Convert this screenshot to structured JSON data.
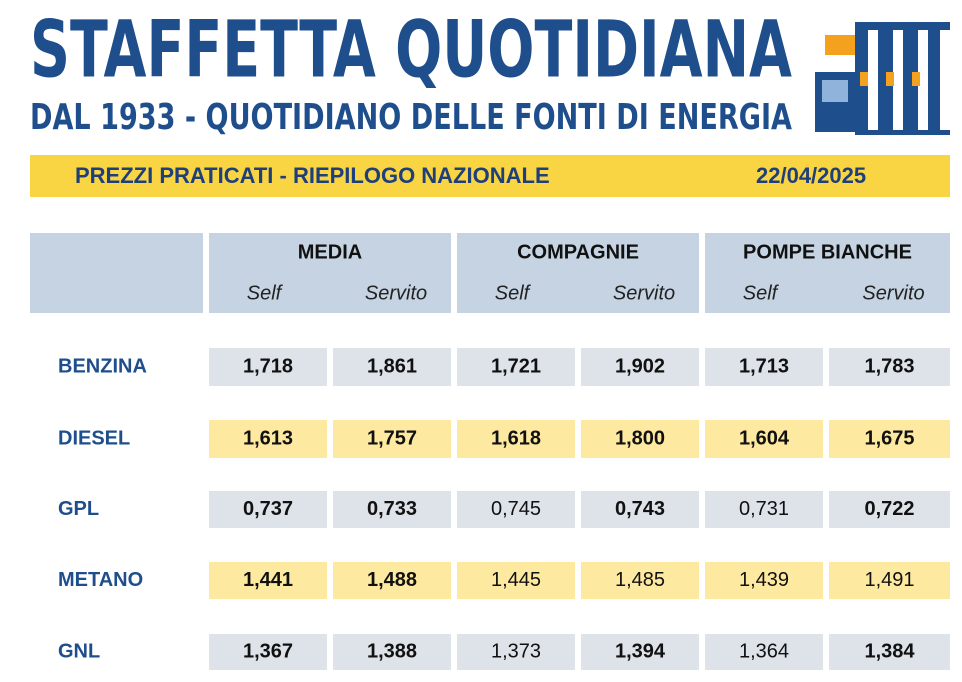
{
  "header": {
    "title": "STAFFETTA QUOTIDIANA",
    "subtitle": "DAL 1933 - QUOTIDIANO DELLE FONTI DI ENERGIA"
  },
  "banner": {
    "label": "PREZZI PRATICATI - RIEPILOGO NAZIONALE",
    "date": "22/04/2025"
  },
  "table": {
    "groups": [
      {
        "name": "MEDIA",
        "columns": [
          "Self",
          "Servito"
        ]
      },
      {
        "name": "COMPAGNIE",
        "columns": [
          "Self",
          "Servito"
        ]
      },
      {
        "name": "POMPE BIANCHE",
        "columns": [
          "Self",
          "Servito"
        ]
      }
    ],
    "rows": [
      {
        "label": "BENZINA",
        "values": [
          "1,718",
          "1,861",
          "1,721",
          "1,902",
          "1,713",
          "1,783"
        ]
      },
      {
        "label": "DIESEL",
        "values": [
          "1,613",
          "1,757",
          "1,618",
          "1,800",
          "1,604",
          "1,675"
        ]
      },
      {
        "label": "GPL",
        "values": [
          "0,737",
          "0,733",
          "0,745",
          "0,743",
          "0,731",
          "0,722"
        ]
      },
      {
        "label": "METANO",
        "values": [
          "1,441",
          "1,488",
          "1,445",
          "1,485",
          "1,439",
          "1,491"
        ]
      },
      {
        "label": "GNL",
        "values": [
          "1,367",
          "1,388",
          "1,373",
          "1,394",
          "1,364",
          "1,384"
        ]
      }
    ]
  }
}
